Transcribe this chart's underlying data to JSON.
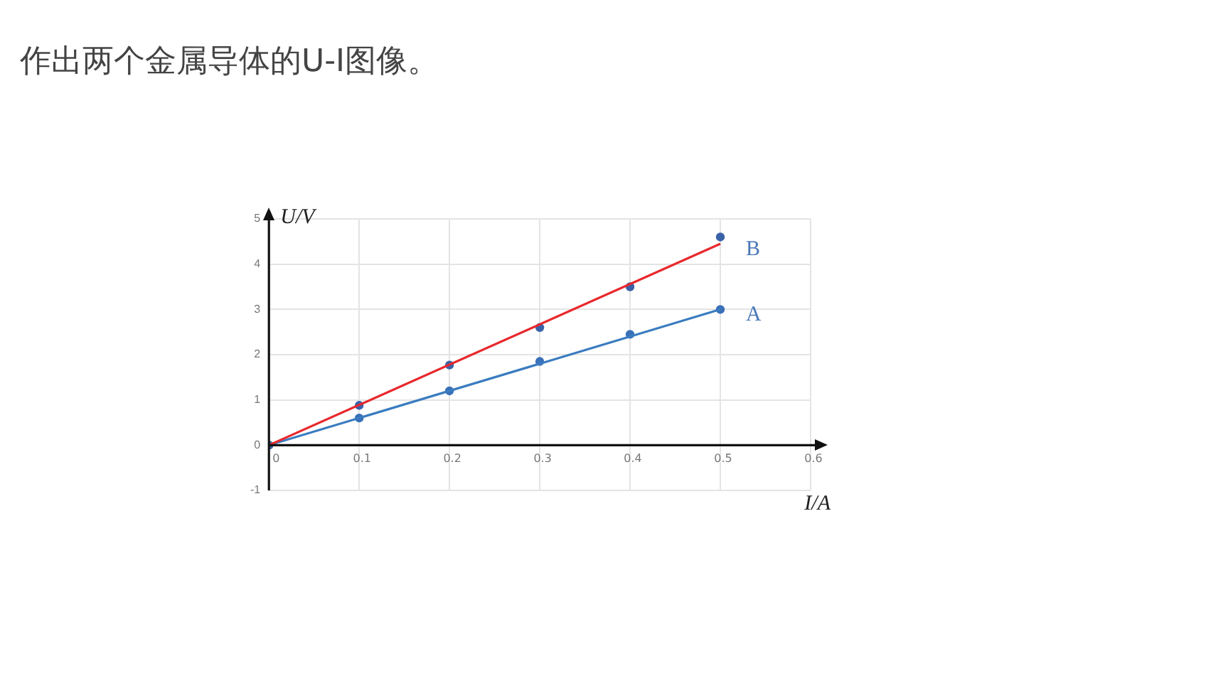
{
  "chart_data": {
    "type": "line",
    "title": "作出两个金属导体的U-I图像。",
    "xlabel": "I/A",
    "ylabel": "U/V",
    "xlim": [
      0,
      0.6
    ],
    "ylim": [
      -1,
      5
    ],
    "xticks": [
      0,
      0.1,
      0.2,
      0.3,
      0.4,
      0.5,
      0.6
    ],
    "yticks": [
      -1,
      0,
      1,
      2,
      3,
      4,
      5
    ],
    "grid": true,
    "legend": false,
    "series": [
      {
        "name": "B",
        "type": "line",
        "color": "#e8282c",
        "x": [
          0,
          0.5
        ],
        "values": [
          0,
          4.45
        ],
        "marker": "none"
      },
      {
        "name": "A",
        "type": "line",
        "color": "#3a7cc0",
        "x": [
          0,
          0.5
        ],
        "values": [
          0,
          3.0
        ],
        "marker": "none"
      },
      {
        "type": "scatter",
        "color": "#3a62a8",
        "x": [
          0,
          0.1,
          0.2,
          0.3,
          0.4,
          0.5
        ],
        "values": [
          0,
          0.88,
          1.77,
          2.6,
          3.5,
          4.6
        ],
        "marker": "circle"
      },
      {
        "type": "scatter",
        "color": "#3a70b8",
        "x": [
          0,
          0.1,
          0.2,
          0.3,
          0.4,
          0.5
        ],
        "values": [
          0,
          0.6,
          1.2,
          1.85,
          2.45,
          3.0
        ],
        "marker": "circle"
      }
    ]
  }
}
